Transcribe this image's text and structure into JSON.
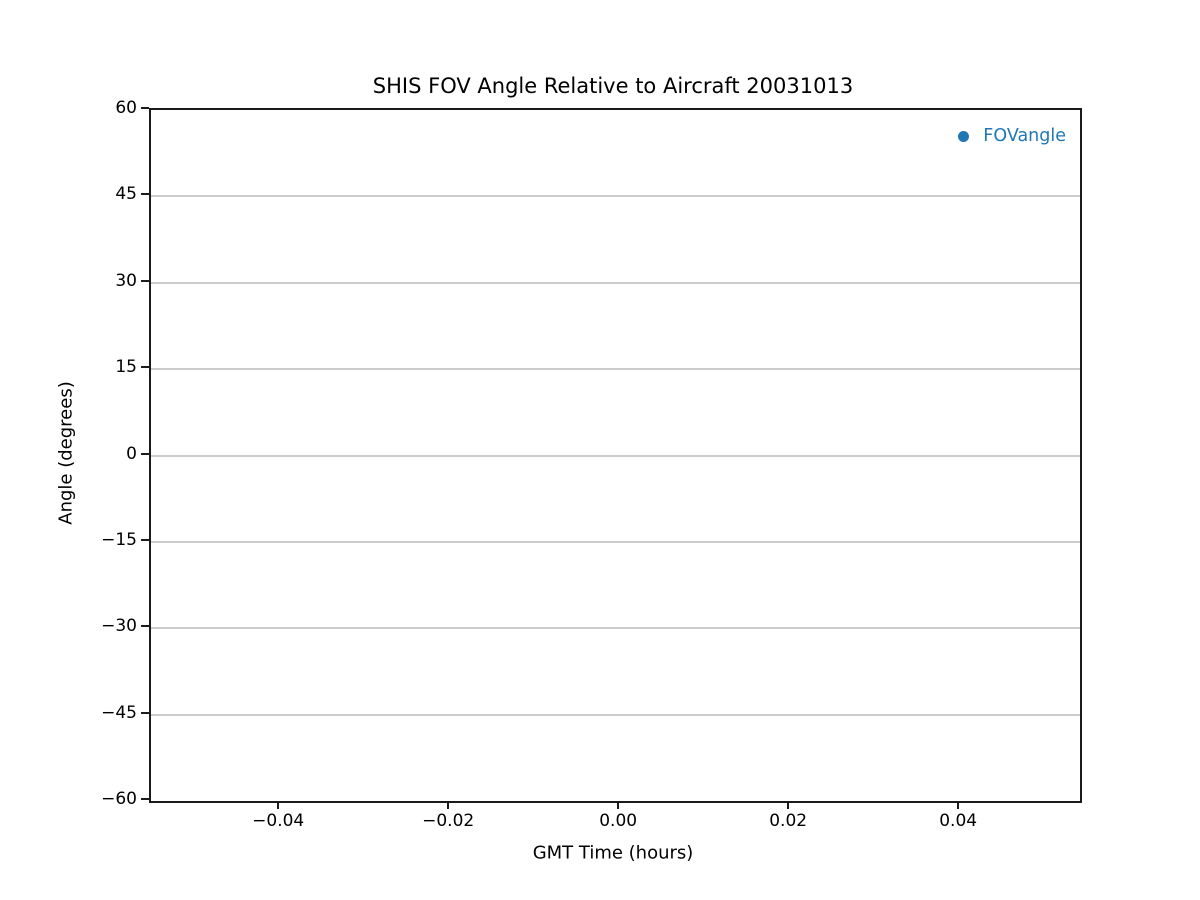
{
  "colors": {
    "series_blue": "#1f77b4",
    "grid": "#cccccc",
    "spine": "#1a1a1a",
    "text": "#000000",
    "background": "#ffffff"
  },
  "chart_data": {
    "type": "scatter",
    "title": "SHIS FOV Angle Relative to Aircraft 20031013",
    "xlabel": "GMT Time (hours)",
    "ylabel": "Angle (degrees)",
    "xlim": [
      -0.0552,
      0.0541
    ],
    "ylim": [
      -60,
      60
    ],
    "x_ticks": [
      -0.04,
      -0.02,
      0.0,
      0.02,
      0.04
    ],
    "x_tick_labels": [
      "−0.04",
      "−0.02",
      "0.00",
      "0.02",
      "0.04"
    ],
    "y_ticks": [
      60,
      45,
      30,
      15,
      0,
      -15,
      -30,
      -45,
      -60
    ],
    "y_tick_labels": [
      "60",
      "45",
      "30",
      "15",
      "0",
      "−15",
      "−30",
      "−45",
      "−60"
    ],
    "grid": "horizontal-only",
    "legend": {
      "label": "FOVangle",
      "marker": "circle",
      "color": "#1f77b4",
      "position": "upper right",
      "frame": false
    },
    "series": [
      {
        "name": "FOVangle",
        "marker": "o",
        "color": "#1f77b4",
        "points": []
      }
    ]
  }
}
